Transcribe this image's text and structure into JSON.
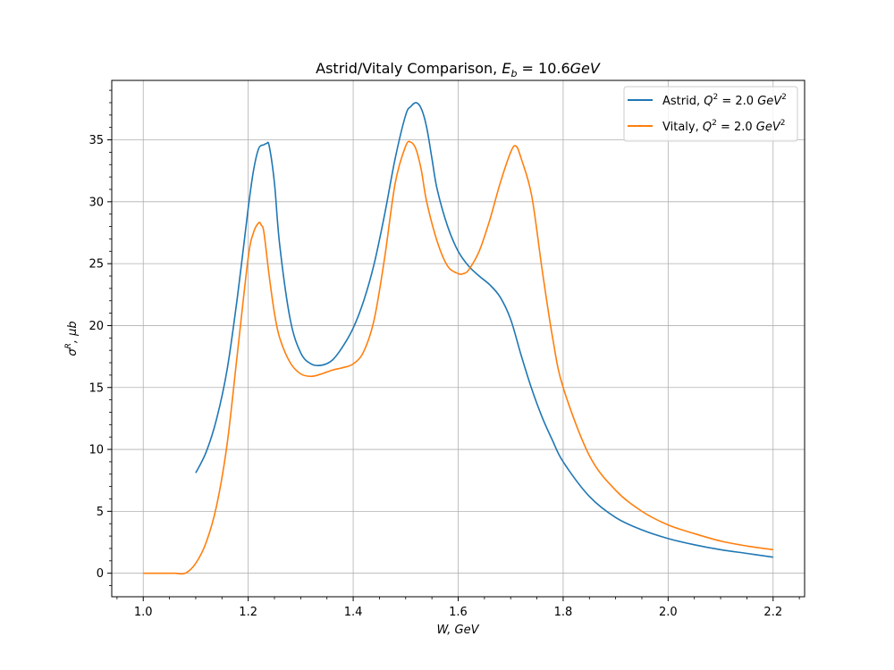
{
  "chart_data": {
    "type": "line",
    "title": "Astrid/Vitaly Comparison, E_b = 10.6GeV",
    "xlabel": "W, GeV",
    "ylabel": "σ^R, μb",
    "xlim": [
      0.94,
      2.26
    ],
    "ylim": [
      -1.9,
      39.8
    ],
    "xticks": [
      1.0,
      1.2,
      1.4,
      1.6,
      1.8,
      2.0,
      2.2
    ],
    "xtick_labels": [
      "1.0",
      "1.2",
      "1.4",
      "1.6",
      "1.8",
      "2.0",
      "2.2"
    ],
    "yticks": [
      0,
      5,
      10,
      15,
      20,
      25,
      30,
      35
    ],
    "ytick_labels": [
      "0",
      "5",
      "10",
      "15",
      "20",
      "25",
      "30",
      "35"
    ],
    "grid": true,
    "legend_position": "top-right",
    "series": [
      {
        "name": "Astrid, Q^2 = 2.0 GeV^2",
        "color": "#1f77b4",
        "x": [
          1.1,
          1.12,
          1.14,
          1.16,
          1.18,
          1.2,
          1.21,
          1.22,
          1.23,
          1.235,
          1.24,
          1.25,
          1.26,
          1.28,
          1.3,
          1.32,
          1.34,
          1.36,
          1.38,
          1.4,
          1.42,
          1.44,
          1.46,
          1.48,
          1.5,
          1.51,
          1.52,
          1.53,
          1.54,
          1.55,
          1.56,
          1.58,
          1.6,
          1.62,
          1.64,
          1.66,
          1.68,
          1.7,
          1.72,
          1.74,
          1.76,
          1.78,
          1.8,
          1.85,
          1.9,
          1.95,
          2.0,
          2.05,
          2.1,
          2.15,
          2.2
        ],
        "y": [
          8.1,
          9.8,
          12.5,
          16.5,
          22.5,
          29.5,
          32.5,
          34.3,
          34.6,
          34.7,
          34.5,
          31.5,
          26.5,
          20.5,
          17.8,
          16.9,
          16.8,
          17.2,
          18.3,
          19.8,
          22.0,
          25.0,
          29.0,
          33.5,
          37.0,
          37.7,
          38.0,
          37.5,
          36.0,
          33.5,
          31.0,
          28.0,
          26.0,
          24.8,
          24.0,
          23.3,
          22.3,
          20.5,
          17.6,
          14.9,
          12.6,
          10.7,
          9.0,
          6.2,
          4.5,
          3.5,
          2.8,
          2.3,
          1.9,
          1.6,
          1.3
        ]
      },
      {
        "name": "Vitaly, Q^2 = 2.0 GeV^2",
        "color": "#ff7f0e",
        "x": [
          1.0,
          1.02,
          1.04,
          1.06,
          1.08,
          1.1,
          1.12,
          1.14,
          1.16,
          1.18,
          1.2,
          1.21,
          1.22,
          1.225,
          1.23,
          1.24,
          1.25,
          1.26,
          1.28,
          1.3,
          1.32,
          1.34,
          1.36,
          1.38,
          1.4,
          1.42,
          1.44,
          1.46,
          1.48,
          1.5,
          1.51,
          1.52,
          1.53,
          1.54,
          1.56,
          1.58,
          1.6,
          1.61,
          1.62,
          1.64,
          1.66,
          1.68,
          1.7,
          1.71,
          1.72,
          1.74,
          1.76,
          1.78,
          1.8,
          1.85,
          1.9,
          1.95,
          2.0,
          2.05,
          2.1,
          2.15,
          2.2
        ],
        "y": [
          0.0,
          0.0,
          0.0,
          0.0,
          0.0,
          0.8,
          2.5,
          5.5,
          10.5,
          18.0,
          25.5,
          27.5,
          28.3,
          28.1,
          27.5,
          24.0,
          21.0,
          19.0,
          17.0,
          16.1,
          15.9,
          16.1,
          16.4,
          16.6,
          16.9,
          17.9,
          20.5,
          25.5,
          31.5,
          34.5,
          34.8,
          34.2,
          32.5,
          30.0,
          26.8,
          24.8,
          24.2,
          24.2,
          24.5,
          26.0,
          28.5,
          31.5,
          34.0,
          34.5,
          33.5,
          30.5,
          24.5,
          19.0,
          15.0,
          9.5,
          6.7,
          5.0,
          3.9,
          3.2,
          2.6,
          2.2,
          1.9
        ]
      }
    ]
  }
}
